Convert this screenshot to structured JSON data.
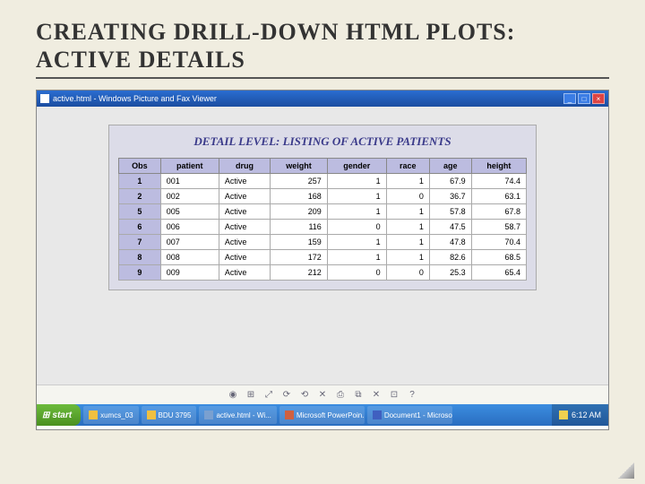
{
  "slide": {
    "title": "Creating Drill-down HTML Plots: Active Details"
  },
  "window": {
    "title": "active.html - Windows Picture and Fax Viewer",
    "detail_title": "DETAIL LEVEL: LISTING OF ACTIVE PATIENTS"
  },
  "table": {
    "columns": [
      "Obs",
      "patient",
      "drug",
      "weight",
      "gender",
      "race",
      "age",
      "height"
    ],
    "rows": [
      [
        "1",
        "001",
        "Active",
        "257",
        "1",
        "1",
        "67.9",
        "74.4"
      ],
      [
        "2",
        "002",
        "Active",
        "168",
        "1",
        "0",
        "36.7",
        "63.1"
      ],
      [
        "5",
        "005",
        "Active",
        "209",
        "1",
        "1",
        "57.8",
        "67.8"
      ],
      [
        "6",
        "006",
        "Active",
        "116",
        "0",
        "1",
        "47.5",
        "58.7"
      ],
      [
        "7",
        "007",
        "Active",
        "159",
        "1",
        "1",
        "47.8",
        "70.4"
      ],
      [
        "8",
        "008",
        "Active",
        "172",
        "1",
        "1",
        "82.6",
        "68.5"
      ],
      [
        "9",
        "009",
        "Active",
        "212",
        "0",
        "0",
        "25.3",
        "65.4"
      ]
    ]
  },
  "toolbar_icons": [
    "◉",
    "⊞",
    "⤢",
    "⟳",
    "⟲",
    "✕",
    "⎙",
    "⧉",
    "✕",
    "⊡",
    "?"
  ],
  "taskbar": {
    "start": "start",
    "items": [
      {
        "label": "xumcs_03",
        "color": "#f0c040"
      },
      {
        "label": "BDU 3795",
        "color": "#f0c040"
      },
      {
        "label": "active.html - Wi...",
        "color": "#7aa0d0"
      },
      {
        "label": "Microsoft PowerPoin...",
        "color": "#d06040"
      },
      {
        "label": "Document1 - Microso...",
        "color": "#4060c0"
      }
    ],
    "time": "6:12 AM"
  }
}
